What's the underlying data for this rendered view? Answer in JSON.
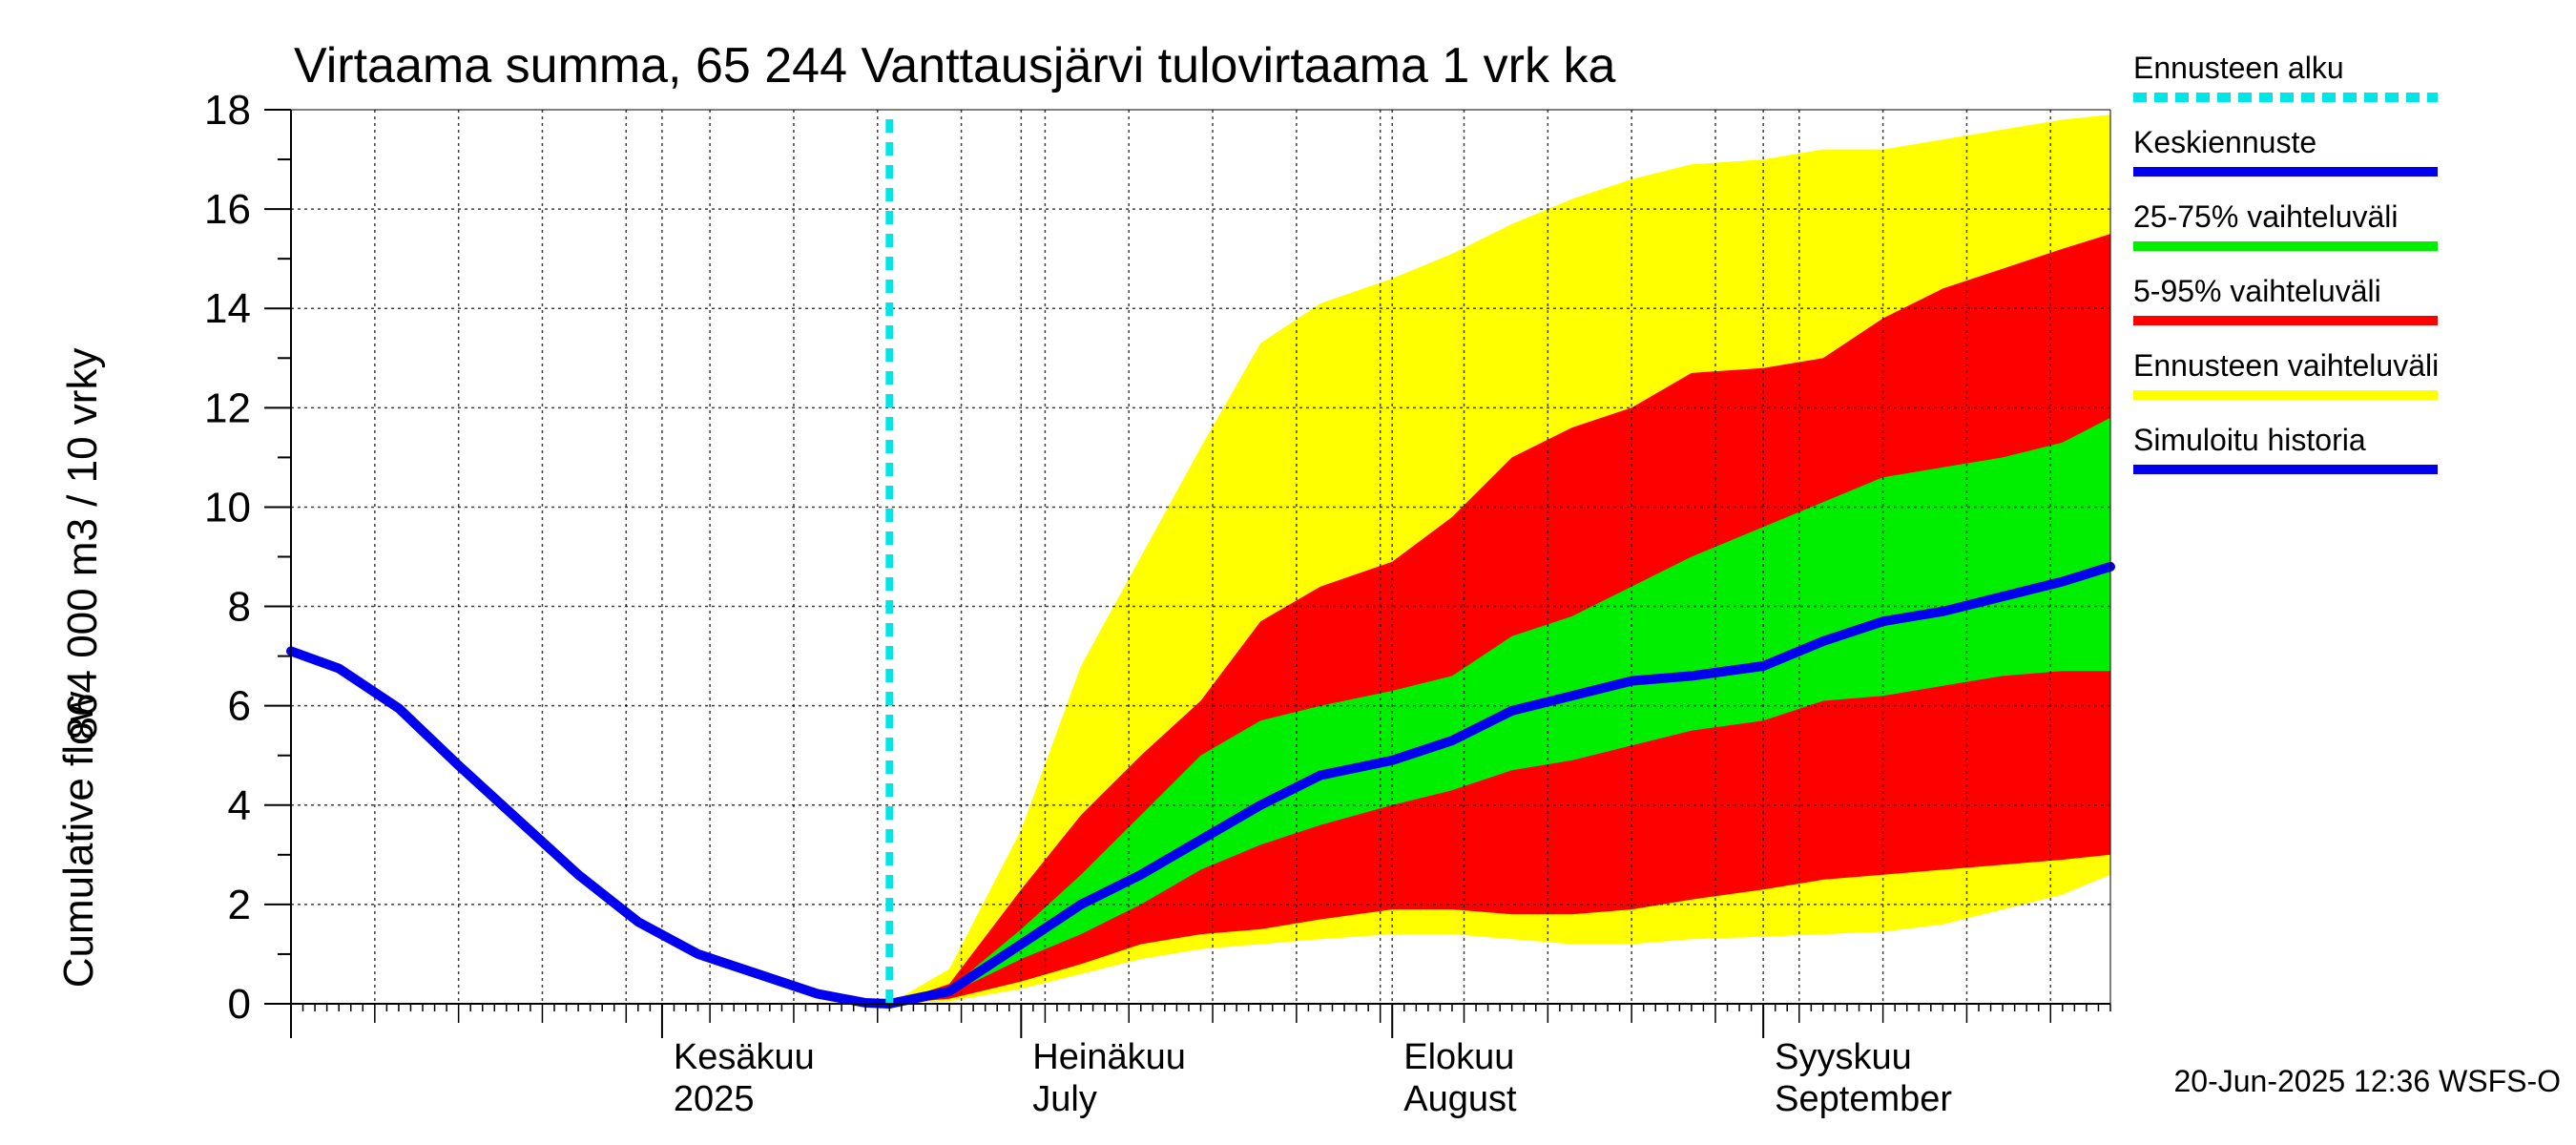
{
  "chart_data": {
    "type": "area",
    "title": "Virtaama summa, 65 244 Vanttausjärvi tulovirtaama 1 vrk ka",
    "ylabel_line1": "864 000 m3 / 10 vrky",
    "ylabel_line2": "Cumulative flow",
    "yticks": [
      "0",
      "2",
      "4",
      "6",
      "8",
      "10",
      "12",
      "14",
      "16",
      "18"
    ],
    "ylim": [
      0,
      18
    ],
    "xlim": [
      "2025-05-01",
      "2025-09-30"
    ],
    "forecast_start": "2025-06-20",
    "month_labels": [
      {
        "date": "2025-06-01",
        "line1": "Kesäkuu",
        "line2": "2025"
      },
      {
        "date": "2025-07-01",
        "line1": "Heinäkuu",
        "line2": "July"
      },
      {
        "date": "2025-08-01",
        "line1": "Elokuu",
        "line2": "August"
      },
      {
        "date": "2025-09-01",
        "line1": "Syyskuu",
        "line2": "September"
      }
    ],
    "colors": {
      "forecast_start": "#00e6e6",
      "median": "#0000ee",
      "band_25_75": "#00ee00",
      "band_5_95": "#ff0000",
      "band_full": "#ffff00",
      "history": "#0000ee"
    },
    "history": {
      "x": [
        "2025-05-01",
        "2025-05-05",
        "2025-05-10",
        "2025-05-15",
        "2025-05-20",
        "2025-05-25",
        "2025-05-30",
        "2025-06-04",
        "2025-06-09",
        "2025-06-14",
        "2025-06-18",
        "2025-06-20"
      ],
      "y": [
        7.1,
        6.75,
        5.95,
        4.8,
        3.7,
        2.6,
        1.65,
        1.0,
        0.6,
        0.2,
        0.02,
        0.0
      ]
    },
    "forecast": {
      "x": [
        "2025-06-20",
        "2025-06-25",
        "2025-07-01",
        "2025-07-06",
        "2025-07-11",
        "2025-07-16",
        "2025-07-21",
        "2025-07-26",
        "2025-08-01",
        "2025-08-06",
        "2025-08-11",
        "2025-08-16",
        "2025-08-21",
        "2025-08-26",
        "2025-09-01",
        "2025-09-06",
        "2025-09-11",
        "2025-09-16",
        "2025-09-21",
        "2025-09-26",
        "2025-09-30"
      ],
      "full_max": [
        0.0,
        0.7,
        3.5,
        6.8,
        9.0,
        11.2,
        13.3,
        14.1,
        14.6,
        15.1,
        15.7,
        16.2,
        16.6,
        16.9,
        17.0,
        17.2,
        17.2,
        17.4,
        17.6,
        17.8,
        17.9
      ],
      "p95": [
        0.0,
        0.4,
        2.3,
        3.8,
        5.0,
        6.1,
        7.7,
        8.4,
        8.9,
        9.8,
        11.0,
        11.6,
        12.0,
        12.7,
        12.8,
        13.0,
        13.8,
        14.4,
        14.8,
        15.2,
        15.5
      ],
      "p75": [
        0.0,
        0.3,
        1.5,
        2.6,
        3.8,
        5.0,
        5.7,
        6.0,
        6.3,
        6.6,
        7.4,
        7.8,
        8.4,
        9.0,
        9.6,
        10.1,
        10.6,
        10.8,
        11.0,
        11.3,
        11.8
      ],
      "median": [
        0.0,
        0.25,
        1.2,
        2.0,
        2.6,
        3.3,
        4.0,
        4.6,
        4.9,
        5.3,
        5.9,
        6.2,
        6.5,
        6.6,
        6.8,
        7.3,
        7.7,
        7.9,
        8.2,
        8.5,
        8.8
      ],
      "p25": [
        0.0,
        0.2,
        0.9,
        1.4,
        2.0,
        2.7,
        3.2,
        3.6,
        4.0,
        4.3,
        4.7,
        4.9,
        5.2,
        5.5,
        5.7,
        6.1,
        6.2,
        6.4,
        6.6,
        6.7,
        6.7
      ],
      "p5": [
        0.0,
        0.1,
        0.45,
        0.8,
        1.2,
        1.4,
        1.5,
        1.7,
        1.9,
        1.9,
        1.8,
        1.8,
        1.9,
        2.1,
        2.3,
        2.5,
        2.6,
        2.7,
        2.8,
        2.9,
        3.0
      ],
      "full_min": [
        0.0,
        0.05,
        0.3,
        0.6,
        0.9,
        1.1,
        1.2,
        1.3,
        1.4,
        1.4,
        1.3,
        1.2,
        1.2,
        1.3,
        1.35,
        1.4,
        1.45,
        1.6,
        1.9,
        2.2,
        2.6
      ]
    },
    "legend": [
      {
        "key": "forecast_start",
        "label": "Ennusteen alku",
        "style": "dashed"
      },
      {
        "key": "median",
        "label": "Keskiennuste",
        "style": "line"
      },
      {
        "key": "band_25_75",
        "label": "25-75% vaihteluväli",
        "style": "line"
      },
      {
        "key": "band_5_95",
        "label": "5-95% vaihteluväli",
        "style": "line"
      },
      {
        "key": "band_full",
        "label": "Ennusteen vaihteluväli",
        "style": "line"
      },
      {
        "key": "history",
        "label": "Simuloitu historia",
        "style": "line"
      }
    ],
    "legend_position": "right",
    "grid": true
  },
  "footer": {
    "timestamp": "20-Jun-2025 12:36 WSFS-O"
  }
}
